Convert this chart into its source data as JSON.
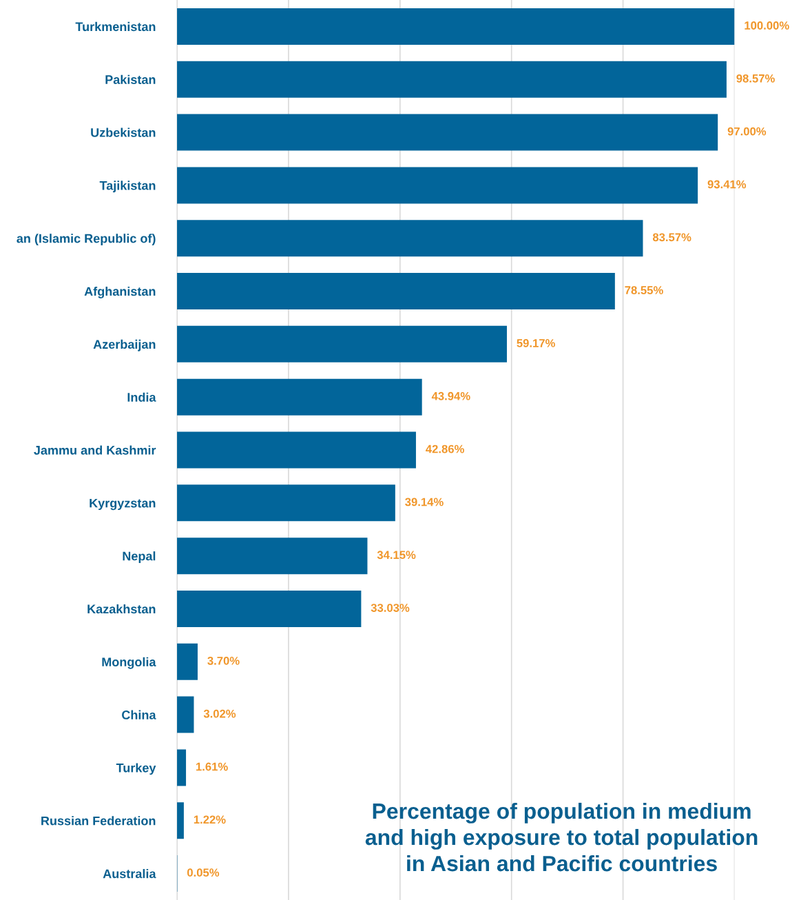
{
  "chart_data": {
    "type": "bar",
    "orientation": "horizontal",
    "title": "Percentage of population in medium\nand high exposure to total population\nin Asian and Pacific countries",
    "categories": [
      "Turkmenistan",
      "Pakistan",
      "Uzbekistan",
      "Tajikistan",
      "an (Islamic Republic of)",
      "Afghanistan",
      "Azerbaijan",
      "India",
      "Jammu and Kashmir",
      "Kyrgyzstan",
      "Nepal",
      "Kazakhstan",
      "Mongolia",
      "China",
      "Turkey",
      "Russian Federation",
      "Australia"
    ],
    "values": [
      100.0,
      98.57,
      97.0,
      93.41,
      83.57,
      78.55,
      59.17,
      43.94,
      42.86,
      39.14,
      34.15,
      33.03,
      3.7,
      3.02,
      1.61,
      1.22,
      0.05
    ],
    "value_labels": [
      "100.00%",
      "98.57%",
      "97.00%",
      "93.41%",
      "83.57%",
      "78.55%",
      "59.17%",
      "43.94%",
      "42.86%",
      "39.14%",
      "34.15%",
      "33.03%",
      "3.70%",
      "3.02%",
      "1.61%",
      "1.22%",
      "0.05%"
    ],
    "color": "#02659a",
    "xlim": [
      0,
      100
    ],
    "xticks": [
      {
        "value": 0,
        "label": null
      },
      {
        "value": 20,
        "label": null
      },
      {
        "value": 40,
        "label": null
      },
      {
        "value": 60,
        "label": null
      },
      {
        "value": 80,
        "label": null
      },
      {
        "value": 100,
        "label": null
      }
    ],
    "grid": "x",
    "tick_labels": "y"
  }
}
